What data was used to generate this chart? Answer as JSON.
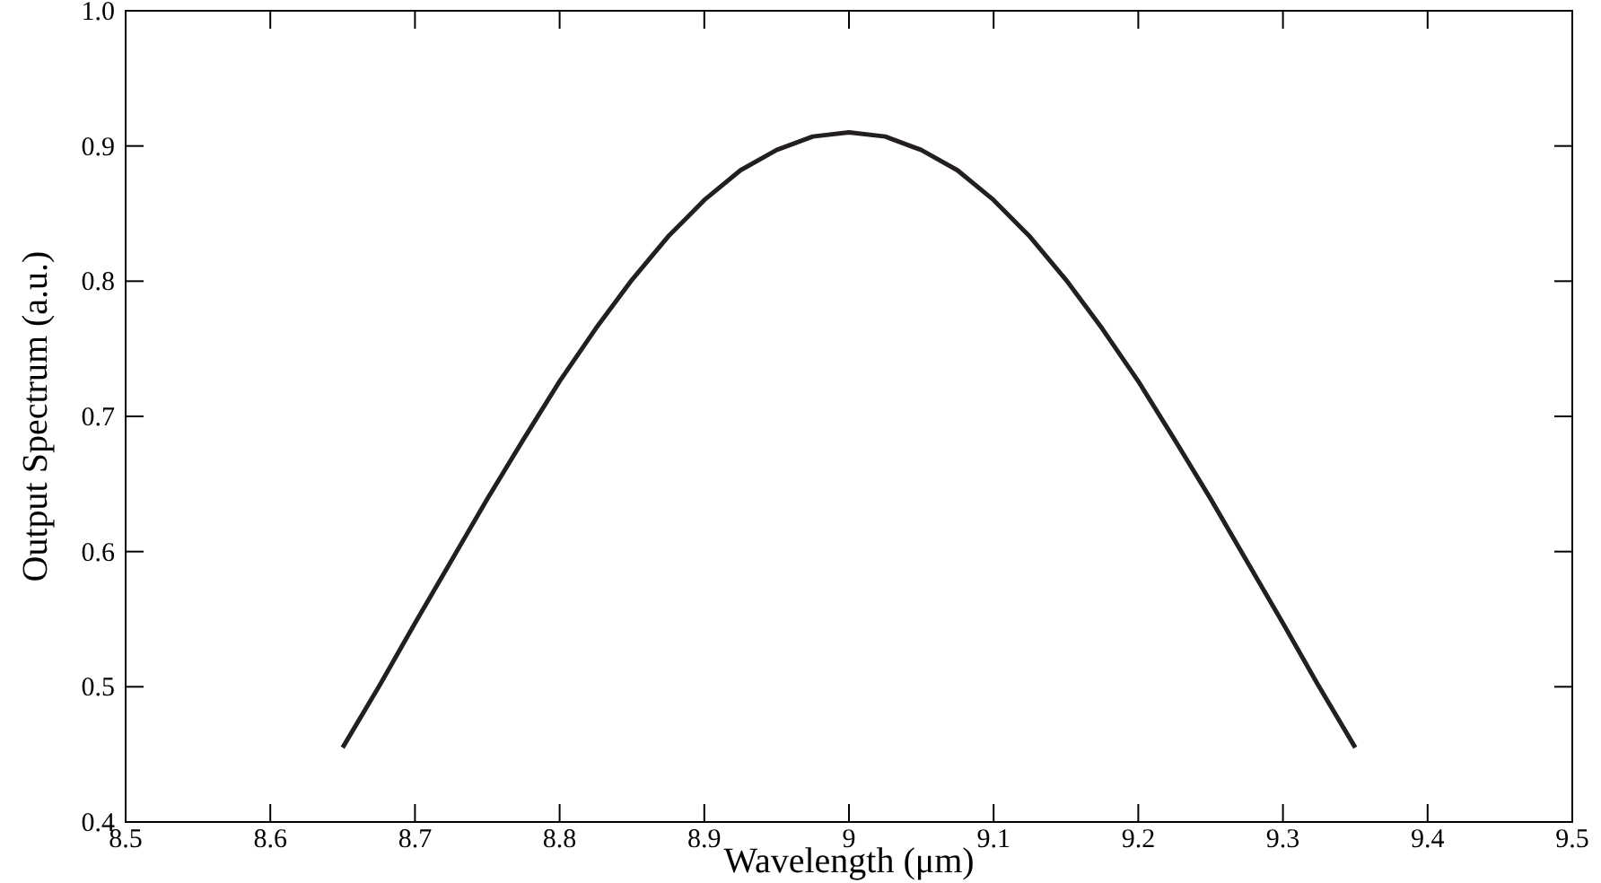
{
  "chart_data": {
    "type": "line",
    "xlabel": "Wavelength (μm)",
    "ylabel": "Output Spectrum (a.u.)",
    "x": [
      8.65,
      8.675,
      8.7,
      8.725,
      8.75,
      8.775,
      8.8,
      8.825,
      8.85,
      8.875,
      8.9,
      8.925,
      8.95,
      8.975,
      9,
      9.025,
      9.05,
      9.075,
      9.1,
      9.125,
      9.15,
      9.175,
      9.2,
      9.225,
      9.25,
      9.275,
      9.3,
      9.325,
      9.35
    ],
    "series": [
      {
        "color": "#231f20",
        "values": [
          0.455,
          0.5,
          0.547,
          0.593,
          0.639,
          0.683,
          0.726,
          0.765,
          0.801,
          0.833,
          0.86,
          0.882,
          0.897,
          0.907,
          0.91,
          0.907,
          0.897,
          0.882,
          0.86,
          0.833,
          0.801,
          0.765,
          0.726,
          0.683,
          0.639,
          0.593,
          0.547,
          0.5,
          0.455
        ]
      }
    ],
    "xlim": [
      8.5,
      9.5
    ],
    "xticks": [
      8.5,
      8.6,
      8.7,
      8.8,
      8.9,
      9,
      9.1,
      9.2,
      9.3,
      9.4,
      9.5
    ],
    "ylim": [
      0.4,
      1.0
    ],
    "yticks": [
      {
        "value": 0.4,
        "label": "0.4"
      },
      0.5,
      0.6,
      0.7,
      0.8,
      0.9,
      {
        "value": 1.0,
        "label": "1.0"
      }
    ],
    "marker": "none",
    "line_style": "solid"
  }
}
